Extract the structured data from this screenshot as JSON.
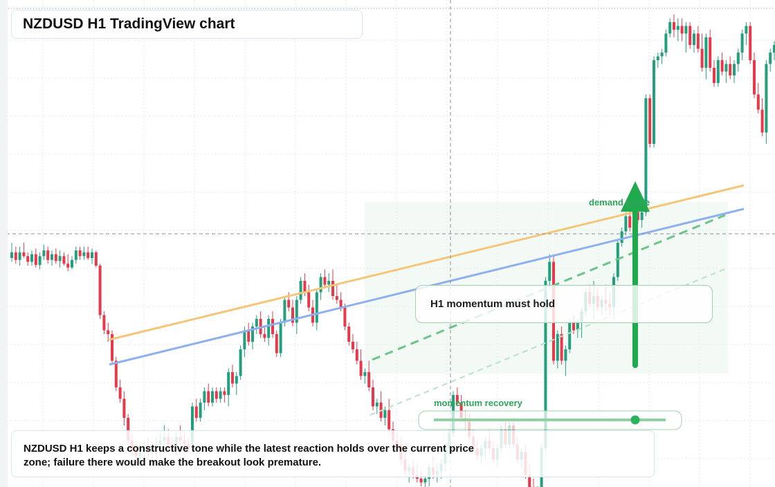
{
  "header": {
    "title": "NZDUSD H1 TradingView chart"
  },
  "annotations": {
    "callout": "H1 momentum must hold",
    "demand_label": "demand guide",
    "momentum_label": "momentum recovery",
    "note": "NZDUSD H1 keeps a constructive tone while the latest reaction holds over the current price zone; failure there would make the breakout look premature."
  },
  "colors": {
    "up": "#22a07e",
    "down": "#e8394a",
    "trend_orange": "#f5c578",
    "trend_blue": "#8fb0ef",
    "signal_green": "#1faa4d",
    "zone_fill": "#eaf6ec",
    "grid": "#dfe5ec"
  },
  "chart_data": {
    "type": "candlestick",
    "symbol": "NZDUSD",
    "timeframe": "H1",
    "ohlc": [
      [
        0.4,
        0.8,
        0.3,
        0.55
      ],
      [
        0.55,
        0.7,
        0.25,
        0.35
      ],
      [
        0.35,
        0.7,
        0.2,
        0.55
      ],
      [
        0.55,
        0.8,
        0.4,
        0.45
      ],
      [
        0.45,
        0.55,
        0.2,
        0.3
      ],
      [
        0.3,
        0.6,
        0.2,
        0.5
      ],
      [
        0.5,
        0.65,
        0.15,
        0.22
      ],
      [
        0.22,
        0.55,
        0.1,
        0.45
      ],
      [
        0.45,
        0.75,
        0.35,
        0.6
      ],
      [
        0.6,
        0.7,
        0.25,
        0.35
      ],
      [
        0.35,
        0.6,
        0.2,
        0.5
      ],
      [
        0.5,
        0.65,
        0.25,
        0.32
      ],
      [
        0.32,
        0.6,
        0.15,
        0.45
      ],
      [
        0.45,
        0.55,
        0.2,
        0.25
      ],
      [
        0.25,
        0.5,
        0.05,
        0.15
      ],
      [
        0.15,
        0.45,
        0.1,
        0.35
      ],
      [
        0.35,
        0.7,
        0.25,
        0.6
      ],
      [
        0.6,
        0.7,
        0.35,
        0.45
      ],
      [
        0.45,
        0.7,
        0.35,
        0.55
      ],
      [
        0.55,
        0.7,
        0.35,
        0.4
      ],
      [
        0.4,
        0.65,
        0.25,
        0.55
      ],
      [
        0.55,
        0.6,
        0.15,
        0.2
      ],
      [
        0.2,
        0.25,
        -1.2,
        -1.1
      ],
      [
        -1.1,
        -1.0,
        -1.6,
        -1.5
      ],
      [
        -1.5,
        -1.3,
        -1.8,
        -1.6
      ],
      [
        -1.6,
        -1.5,
        -2.4,
        -2.3
      ],
      [
        -2.3,
        -2.2,
        -3.1,
        -3.0
      ],
      [
        -3.0,
        -2.8,
        -3.4,
        -3.3
      ],
      [
        -3.3,
        -3.1,
        -4.0,
        -3.8
      ],
      [
        -3.8,
        -3.7,
        -4.5,
        -4.4
      ],
      [
        -4.4,
        -4.2,
        -4.8,
        -4.6
      ],
      [
        -4.6,
        -4.4,
        -5.0,
        -4.8
      ],
      [
        -4.8,
        -4.5,
        -5.1,
        -4.7
      ],
      [
        -4.7,
        -4.4,
        -5.0,
        -4.6
      ],
      [
        -4.6,
        -4.3,
        -4.9,
        -4.7
      ],
      [
        -4.7,
        -4.4,
        -5.0,
        -4.6
      ],
      [
        -4.6,
        -4.3,
        -4.9,
        -4.5
      ],
      [
        -4.5,
        -4.2,
        -4.8,
        -4.4
      ],
      [
        -4.4,
        -4.0,
        -4.7,
        -4.3
      ],
      [
        -4.3,
        -4.1,
        -4.6,
        -4.5
      ],
      [
        -4.5,
        -4.3,
        -4.7,
        -4.6
      ],
      [
        -4.6,
        -4.2,
        -4.8,
        -4.3
      ],
      [
        -4.3,
        -4.0,
        -4.6,
        -4.4
      ],
      [
        -4.4,
        -4.2,
        -4.7,
        -4.5
      ],
      [
        -4.5,
        -4.3,
        -4.7,
        -4.6
      ],
      [
        -4.5,
        -3.4,
        -4.6,
        -3.5
      ],
      [
        -3.5,
        -3.3,
        -3.9,
        -3.8
      ],
      [
        -3.8,
        -3.3,
        -3.9,
        -3.4
      ],
      [
        -3.4,
        -3.0,
        -3.6,
        -3.1
      ],
      [
        -3.1,
        -2.9,
        -3.5,
        -3.4
      ],
      [
        -3.4,
        -3.0,
        -3.5,
        -3.1
      ],
      [
        -3.1,
        -3.0,
        -3.4,
        -3.3
      ],
      [
        -3.3,
        -3.0,
        -3.4,
        -3.1
      ],
      [
        -3.1,
        -3.0,
        -3.4,
        -3.2
      ],
      [
        -3.2,
        -2.5,
        -3.5,
        -2.6
      ],
      [
        -2.6,
        -2.4,
        -3.0,
        -2.9
      ],
      [
        -2.9,
        -2.6,
        -3.2,
        -2.7
      ],
      [
        -2.7,
        -1.9,
        -2.8,
        -2.0
      ],
      [
        -2.0,
        -1.4,
        -2.2,
        -1.5
      ],
      [
        -1.5,
        -1.3,
        -1.9,
        -1.8
      ],
      [
        -1.8,
        -1.3,
        -2.0,
        -1.4
      ],
      [
        -1.4,
        -1.1,
        -1.6,
        -1.2
      ],
      [
        -1.2,
        -1.0,
        -1.7,
        -1.6
      ],
      [
        -1.6,
        -1.4,
        -1.8,
        -1.7
      ],
      [
        -1.7,
        -1.1,
        -1.9,
        -1.2
      ],
      [
        -1.2,
        -1.0,
        -1.7,
        -1.6
      ],
      [
        -1.6,
        -1.5,
        -2.2,
        -2.1
      ],
      [
        -2.1,
        -1.2,
        -2.2,
        -1.3
      ],
      [
        -1.3,
        -0.6,
        -1.4,
        -0.7
      ],
      [
        -0.7,
        -0.5,
        -1.0,
        -0.9
      ],
      [
        -0.9,
        -0.7,
        -1.4,
        -1.3
      ],
      [
        -1.3,
        -0.6,
        -1.6,
        -0.7
      ],
      [
        -0.7,
        -0.1,
        -0.8,
        -0.2
      ],
      [
        -0.2,
        0.0,
        -0.6,
        -0.5
      ],
      [
        -0.5,
        -0.3,
        -1.0,
        -0.9
      ],
      [
        -0.9,
        -0.7,
        -1.4,
        -1.3
      ],
      [
        -1.3,
        -0.4,
        -1.5,
        -0.5
      ],
      [
        -0.5,
        0.0,
        -0.7,
        -0.1
      ],
      [
        -0.1,
        0.1,
        -0.4,
        -0.3
      ],
      [
        -0.3,
        0.0,
        -0.5,
        -0.2
      ],
      [
        -0.2,
        0.1,
        -0.7,
        -0.6
      ],
      [
        -0.6,
        -0.3,
        -0.8,
        -0.7
      ],
      [
        -0.7,
        -0.5,
        -1.0,
        -0.9
      ],
      [
        -0.9,
        -0.8,
        -1.5,
        -1.4
      ],
      [
        -1.4,
        -1.3,
        -1.9,
        -1.8
      ],
      [
        -1.8,
        -1.6,
        -2.1,
        -2.0
      ],
      [
        -2.0,
        -1.8,
        -2.4,
        -2.3
      ],
      [
        -2.3,
        -2.0,
        -2.8,
        -2.7
      ],
      [
        -2.7,
        -2.5,
        -2.9,
        -2.6
      ],
      [
        -2.6,
        -2.3,
        -3.1,
        -3.0
      ],
      [
        -3.0,
        -2.8,
        -3.6,
        -3.5
      ],
      [
        -3.5,
        -3.3,
        -3.7,
        -3.4
      ],
      [
        -3.4,
        -3.1,
        -3.9,
        -3.8
      ],
      [
        -3.8,
        -3.5,
        -4.0,
        -3.6
      ],
      [
        -3.6,
        -3.3,
        -4.2,
        -4.1
      ],
      [
        -4.1,
        -3.9,
        -4.5,
        -4.4
      ],
      [
        -4.4,
        -4.2,
        -4.7,
        -4.5
      ],
      [
        -4.5,
        -4.3,
        -5.0,
        -4.9
      ],
      [
        -4.9,
        -4.7,
        -5.3,
        -5.2
      ],
      [
        -5.2,
        -5.0,
        -5.5,
        -5.1
      ],
      [
        -5.1,
        -4.9,
        -5.4,
        -5.3
      ],
      [
        -5.3,
        -5.0,
        -5.5,
        -5.4
      ],
      [
        -5.4,
        -5.2,
        -5.6,
        -5.5
      ],
      [
        -5.5,
        -5.3,
        -5.7,
        -5.4
      ],
      [
        -5.4,
        -5.0,
        -5.6,
        -5.1
      ],
      [
        -5.1,
        -4.8,
        -5.4,
        -5.3
      ],
      [
        -5.3,
        -5.0,
        -5.5,
        -5.2
      ],
      [
        -5.2,
        -4.9,
        -5.4,
        -5.0
      ],
      [
        -5.0,
        -4.5,
        -5.2,
        -4.6
      ],
      [
        -4.6,
        -4.1,
        -4.8,
        -4.2
      ],
      [
        -4.2,
        -3.1,
        -4.3,
        -3.2
      ],
      [
        -3.2,
        -3.0,
        -3.5,
        -3.4
      ],
      [
        -3.4,
        -3.2,
        -3.9,
        -3.8
      ],
      [
        -3.8,
        -3.6,
        -4.1,
        -3.9
      ],
      [
        -3.9,
        -3.7,
        -4.4,
        -4.3
      ],
      [
        -4.3,
        -4.1,
        -4.7,
        -4.6
      ],
      [
        -4.6,
        -4.4,
        -4.9,
        -4.8
      ],
      [
        -4.8,
        -4.5,
        -5.0,
        -4.6
      ],
      [
        -4.6,
        -4.3,
        -4.9,
        -4.4
      ],
      [
        -4.4,
        -4.1,
        -4.7,
        -4.6
      ],
      [
        -4.6,
        -4.4,
        -5.0,
        -4.9
      ],
      [
        -4.9,
        -4.5,
        -5.1,
        -4.6
      ],
      [
        -4.6,
        -4.0,
        -4.7,
        -4.1
      ],
      [
        -4.1,
        -3.9,
        -4.6,
        -4.5
      ],
      [
        -4.5,
        -3.9,
        -4.6,
        -4.0
      ],
      [
        -4.0,
        -3.8,
        -4.6,
        -4.5
      ],
      [
        -4.5,
        -4.3,
        -5.0,
        -4.9
      ],
      [
        -4.9,
        -4.6,
        -5.1,
        -4.7
      ],
      [
        -4.7,
        -4.5,
        -5.4,
        -5.3
      ],
      [
        -5.3,
        -5.0,
        -5.8,
        -5.7
      ],
      [
        -5.7,
        -5.4,
        -6.0,
        -5.9
      ],
      [
        -5.9,
        -5.6,
        -6.2,
        -5.8
      ],
      [
        -5.8,
        -4.5,
        -5.9,
        -4.6
      ],
      [
        -4.6,
        -0.1,
        -4.7,
        -0.2
      ],
      [
        -0.2,
        0.5,
        -0.4,
        0.3
      ],
      [
        0.3,
        0.5,
        -2.4,
        -2.3
      ],
      [
        -2.3,
        -1.5,
        -2.5,
        -1.6
      ],
      [
        -1.6,
        -1.4,
        -2.4,
        -2.3
      ],
      [
        -2.3,
        -1.9,
        -2.7,
        -2.0
      ],
      [
        -2.0,
        -1.2,
        -2.1,
        -1.3
      ],
      [
        -1.3,
        -1.1,
        -1.6,
        -1.5
      ],
      [
        -1.5,
        -1.2,
        -1.7,
        -1.3
      ],
      [
        -1.3,
        -0.9,
        -1.7,
        -1.0
      ],
      [
        -1.0,
        -0.4,
        -1.1,
        -0.5
      ],
      [
        -0.5,
        -0.3,
        -0.9,
        -0.8
      ],
      [
        -0.8,
        -0.2,
        -1.2,
        -0.6
      ],
      [
        -0.6,
        -0.4,
        -1.0,
        -0.9
      ],
      [
        -0.9,
        -0.6,
        -1.1,
        -0.7
      ],
      [
        -0.7,
        -0.3,
        -1.0,
        -0.8
      ],
      [
        -0.8,
        -0.5,
        -1.1,
        -0.9
      ],
      [
        -0.9,
        -0.0,
        -1.2,
        -0.1
      ],
      [
        -0.1,
        0.9,
        -0.2,
        0.8
      ],
      [
        0.8,
        1.2,
        0.7,
        1.1
      ],
      [
        1.1,
        1.6,
        1.0,
        1.5
      ],
      [
        1.5,
        1.9,
        1.1,
        1.2
      ],
      [
        1.2,
        1.8,
        1.1,
        1.7
      ],
      [
        1.7,
        1.9,
        1.3,
        1.4
      ],
      [
        1.4,
        1.7,
        1.2,
        1.6
      ],
      [
        1.6,
        4.7,
        1.5,
        4.6
      ],
      [
        4.6,
        4.7,
        3.3,
        3.4
      ],
      [
        3.4,
        5.7,
        3.3,
        5.6
      ],
      [
        5.6,
        5.8,
        5.4,
        5.7
      ],
      [
        5.7,
        5.9,
        5.5,
        5.8
      ],
      [
        5.8,
        6.4,
        5.7,
        6.3
      ],
      [
        6.3,
        6.7,
        6.2,
        6.6
      ],
      [
        6.6,
        6.8,
        6.2,
        6.4
      ],
      [
        6.4,
        6.7,
        6.1,
        6.5
      ],
      [
        6.5,
        6.7,
        6.1,
        6.3
      ],
      [
        6.3,
        6.6,
        5.8,
        6.5
      ],
      [
        6.5,
        6.6,
        5.9,
        6.0
      ],
      [
        6.0,
        6.4,
        5.8,
        6.3
      ],
      [
        6.3,
        6.5,
        5.8,
        5.9
      ],
      [
        5.9,
        6.3,
        5.3,
        5.4
      ],
      [
        5.4,
        6.3,
        5.1,
        6.2
      ],
      [
        6.2,
        6.4,
        5.3,
        5.4
      ],
      [
        5.4,
        5.6,
        4.9,
        5.0
      ],
      [
        5.0,
        5.7,
        4.9,
        5.6
      ],
      [
        5.6,
        5.8,
        5.2,
        5.3
      ],
      [
        5.3,
        5.6,
        5.0,
        5.5
      ],
      [
        5.5,
        5.7,
        5.1,
        5.2
      ],
      [
        5.2,
        5.6,
        5.0,
        5.5
      ],
      [
        5.5,
        5.9,
        5.3,
        5.8
      ],
      [
        5.8,
        6.4,
        5.6,
        6.3
      ],
      [
        6.3,
        6.6,
        6.0,
        6.5
      ],
      [
        6.5,
        6.6,
        5.5,
        5.6
      ],
      [
        5.6,
        5.8,
        4.6,
        4.7
      ],
      [
        4.7,
        5.0,
        4.2,
        4.3
      ],
      [
        4.3,
        4.6,
        3.6,
        3.7
      ],
      [
        3.7,
        5.6,
        3.4,
        5.5
      ],
      [
        5.5,
        5.9,
        5.3,
        5.8
      ],
      [
        5.8,
        6.1,
        5.6,
        6.0
      ],
      [
        6.0,
        7.1,
        5.9,
        7.0
      ]
    ]
  }
}
